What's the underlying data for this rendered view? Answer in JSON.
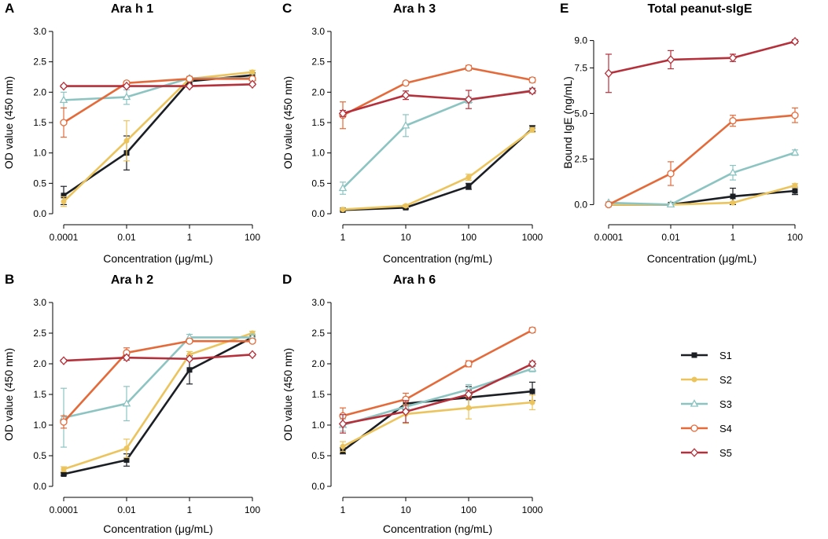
{
  "figure": {
    "legend": [
      {
        "name": "S1",
        "color": "#1b1f24",
        "marker": "square"
      },
      {
        "name": "S2",
        "color": "#ecc45d",
        "marker": "circle"
      },
      {
        "name": "S3",
        "color": "#8cc4c2",
        "marker": "triangle"
      },
      {
        "name": "S4",
        "color": "#e46a3a",
        "marker": "circle-open"
      },
      {
        "name": "S5",
        "color": "#b5303a",
        "marker": "diamond-open"
      }
    ]
  },
  "chart_data": [
    {
      "panel": "A",
      "title": "Ara h 1",
      "type": "line",
      "xlabel": "Concentration (μg/mL)",
      "ylabel": "OD value (450 nm)",
      "categories": [
        "0.0001",
        "0.01",
        "1",
        "100"
      ],
      "ylim": [
        0,
        3.0
      ],
      "yticks": [
        "0.0",
        "0.5",
        "1.0",
        "1.5",
        "2.0",
        "2.5",
        "3.0"
      ],
      "series": [
        {
          "name": "S1",
          "values": [
            0.3,
            1.0,
            2.18,
            2.28
          ],
          "errors": [
            0.15,
            0.28,
            0.05,
            0.04
          ]
        },
        {
          "name": "S2",
          "values": [
            0.2,
            1.2,
            2.22,
            2.33
          ],
          "errors": [
            0.08,
            0.33,
            0.04,
            0.03
          ]
        },
        {
          "name": "S3",
          "values": [
            1.87,
            1.92,
            2.23,
            2.23
          ],
          "errors": [
            0.13,
            0.12,
            0.03,
            0.03
          ]
        },
        {
          "name": "S4",
          "values": [
            1.5,
            2.15,
            2.22,
            2.22
          ],
          "errors": [
            0.24,
            0.03,
            0.03,
            0.03
          ]
        },
        {
          "name": "S5",
          "values": [
            2.1,
            2.1,
            2.1,
            2.13
          ],
          "errors": [
            0.02,
            0.02,
            0.02,
            0.02
          ]
        }
      ]
    },
    {
      "panel": "B",
      "title": "Ara h 2",
      "type": "line",
      "xlabel": "Concentration (μg/mL)",
      "ylabel": "OD value (450 nm)",
      "categories": [
        "0.0001",
        "0.01",
        "1",
        "100"
      ],
      "ylim": [
        0,
        3.0
      ],
      "yticks": [
        "0.0",
        "0.5",
        "1.0",
        "1.5",
        "2.0",
        "2.5",
        "3.0"
      ],
      "series": [
        {
          "name": "S1",
          "values": [
            0.2,
            0.43,
            1.9,
            2.43
          ],
          "errors": [
            0.02,
            0.1,
            0.23,
            0.05
          ]
        },
        {
          "name": "S2",
          "values": [
            0.28,
            0.62,
            2.15,
            2.5
          ],
          "errors": [
            0.04,
            0.15,
            0.05,
            0.03
          ]
        },
        {
          "name": "S3",
          "values": [
            1.12,
            1.35,
            2.43,
            2.43
          ],
          "errors": [
            0.48,
            0.28,
            0.05,
            0.05
          ]
        },
        {
          "name": "S4",
          "values": [
            1.05,
            2.18,
            2.37,
            2.37
          ],
          "errors": [
            0.1,
            0.08,
            0.03,
            0.03
          ]
        },
        {
          "name": "S5",
          "values": [
            2.05,
            2.1,
            2.08,
            2.15
          ],
          "errors": [
            0.02,
            0.04,
            0.02,
            0.02
          ]
        }
      ]
    },
    {
      "panel": "C",
      "title": "Ara h 3",
      "type": "line",
      "xlabel": "Concentration (ng/mL)",
      "ylabel": "OD value (450 nm)",
      "categories": [
        "1",
        "10",
        "100",
        "1000"
      ],
      "ylim": [
        0,
        3.0
      ],
      "yticks": [
        "0.0",
        "0.5",
        "1.0",
        "1.5",
        "2.0",
        "2.5",
        "3.0"
      ],
      "series": [
        {
          "name": "S1",
          "values": [
            0.06,
            0.1,
            0.45,
            1.4
          ],
          "errors": [
            0.01,
            0.02,
            0.05,
            0.05
          ]
        },
        {
          "name": "S2",
          "values": [
            0.07,
            0.13,
            0.6,
            1.38
          ],
          "errors": [
            0.01,
            0.02,
            0.05,
            0.04
          ]
        },
        {
          "name": "S3",
          "values": [
            0.42,
            1.45,
            1.87,
            2.03
          ],
          "errors": [
            0.1,
            0.18,
            0.05,
            0.04
          ]
        },
        {
          "name": "S4",
          "values": [
            1.62,
            2.15,
            2.4,
            2.2
          ],
          "errors": [
            0.22,
            0.03,
            0.04,
            0.04
          ]
        },
        {
          "name": "S5",
          "values": [
            1.65,
            1.95,
            1.88,
            2.02
          ],
          "errors": [
            0.05,
            0.07,
            0.15,
            0.04
          ]
        }
      ]
    },
    {
      "panel": "D",
      "title": "Ara h 6",
      "type": "line",
      "xlabel": "Concentration (ng/mL)",
      "ylabel": "OD value (450 nm)",
      "categories": [
        "1",
        "10",
        "100",
        "1000"
      ],
      "ylim": [
        0,
        3.0
      ],
      "yticks": [
        "0.0",
        "0.5",
        "1.0",
        "1.5",
        "2.0",
        "2.5",
        "3.0"
      ],
      "series": [
        {
          "name": "S1",
          "values": [
            0.58,
            1.35,
            1.45,
            1.55
          ],
          "errors": [
            0.05,
            0.1,
            0.18,
            0.15
          ]
        },
        {
          "name": "S2",
          "values": [
            0.65,
            1.18,
            1.28,
            1.37
          ],
          "errors": [
            0.08,
            0.15,
            0.18,
            0.12
          ]
        },
        {
          "name": "S3",
          "values": [
            1.0,
            1.3,
            1.58,
            1.92
          ],
          "errors": [
            0.1,
            0.1,
            0.08,
            0.05
          ]
        },
        {
          "name": "S4",
          "values": [
            1.15,
            1.42,
            2.0,
            2.55
          ],
          "errors": [
            0.13,
            0.1,
            0.05,
            0.04
          ]
        },
        {
          "name": "S5",
          "values": [
            1.02,
            1.22,
            1.5,
            2.0
          ],
          "errors": [
            0.15,
            0.18,
            0.07,
            0.04
          ]
        }
      ]
    },
    {
      "panel": "E",
      "title": "Total peanut-sIgE",
      "type": "line",
      "xlabel": "Concentration (μg/mL)",
      "ylabel": "Bound IgE (ng/mL)",
      "categories": [
        "0.0001",
        "0.01",
        "1",
        "100"
      ],
      "ylim": [
        -0.5,
        9.5
      ],
      "ytick_values": [
        0,
        2.5,
        5.0,
        7.5,
        9.0
      ],
      "yticks": [
        "0.0",
        "2.5",
        "5.0",
        "7.5",
        "9.0"
      ],
      "series": [
        {
          "name": "S1",
          "values": [
            0.0,
            0.0,
            0.45,
            0.75
          ],
          "errors": [
            0.05,
            0.03,
            0.45,
            0.2
          ]
        },
        {
          "name": "S2",
          "values": [
            0.0,
            0.0,
            0.1,
            1.05
          ],
          "errors": [
            0.05,
            0.03,
            0.05,
            0.1
          ]
        },
        {
          "name": "S3",
          "values": [
            0.1,
            0.0,
            1.75,
            2.85
          ],
          "errors": [
            0.05,
            0.03,
            0.4,
            0.15
          ]
        },
        {
          "name": "S4",
          "values": [
            0.0,
            1.7,
            4.6,
            4.9
          ],
          "errors": [
            0.05,
            0.65,
            0.3,
            0.4
          ]
        },
        {
          "name": "S5",
          "values": [
            7.2,
            7.95,
            8.05,
            8.95
          ],
          "errors": [
            1.05,
            0.5,
            0.2,
            0.1
          ]
        }
      ]
    }
  ]
}
